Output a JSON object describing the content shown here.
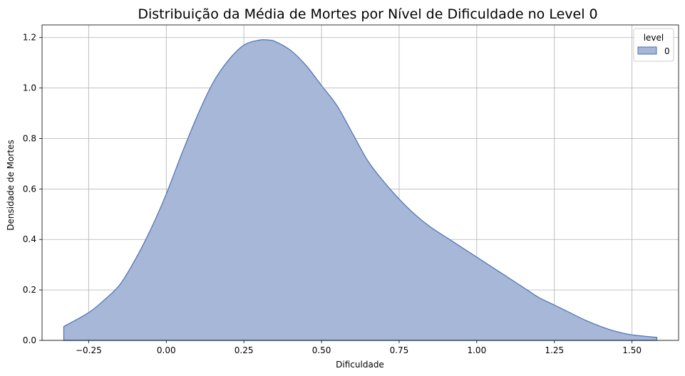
{
  "chart_data": {
    "type": "area",
    "title": "Distribuição da Média de Mortes por Nível de Dificuldade no Level 0",
    "xlabel": "Dificuldade",
    "ylabel": "Densidade de Mortes",
    "xlim": [
      -0.4,
      1.65
    ],
    "ylim": [
      0,
      1.25
    ],
    "xticks": [
      -0.25,
      0.0,
      0.25,
      0.5,
      0.75,
      1.0,
      1.25,
      1.5
    ],
    "xtick_labels": [
      "−0.25",
      "0.00",
      "0.25",
      "0.50",
      "0.75",
      "1.00",
      "1.25",
      "1.50"
    ],
    "yticks": [
      0.0,
      0.2,
      0.4,
      0.6,
      0.8,
      1.0,
      1.2
    ],
    "ytick_labels": [
      "0.0",
      "0.2",
      "0.4",
      "0.6",
      "0.8",
      "1.0",
      "1.2"
    ],
    "grid": true,
    "legend": {
      "title": "level",
      "placement": "top-right",
      "entries": [
        "0"
      ]
    },
    "series": [
      {
        "name": "0",
        "fill_color": "#a6b7d7",
        "line_color": "#4c72b0",
        "x": [
          -0.33,
          -0.25,
          -0.2,
          -0.15,
          -0.1,
          -0.05,
          0.0,
          0.05,
          0.1,
          0.15,
          0.2,
          0.25,
          0.3,
          0.33,
          0.35,
          0.4,
          0.45,
          0.5,
          0.55,
          0.6,
          0.65,
          0.7,
          0.75,
          0.8,
          0.85,
          0.9,
          0.95,
          1.0,
          1.05,
          1.1,
          1.15,
          1.2,
          1.25,
          1.3,
          1.35,
          1.4,
          1.45,
          1.5,
          1.58
        ],
        "y": [
          0.055,
          0.11,
          0.16,
          0.22,
          0.32,
          0.44,
          0.58,
          0.74,
          0.89,
          1.02,
          1.11,
          1.17,
          1.19,
          1.19,
          1.185,
          1.15,
          1.09,
          1.01,
          0.93,
          0.82,
          0.71,
          0.63,
          0.56,
          0.5,
          0.45,
          0.41,
          0.37,
          0.33,
          0.29,
          0.25,
          0.21,
          0.17,
          0.14,
          0.11,
          0.08,
          0.055,
          0.035,
          0.022,
          0.012
        ]
      }
    ]
  }
}
